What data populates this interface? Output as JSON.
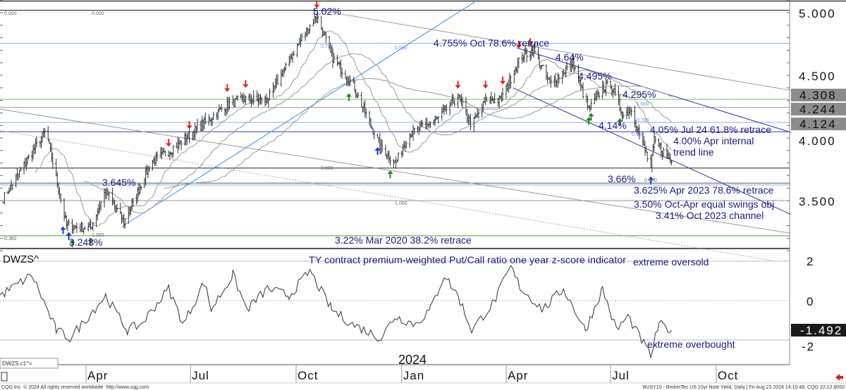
{
  "chart_data": {
    "type": "ohlc-bar",
    "title": "BUSY10 - BrokerTec US 10yr Note Yield, Daily",
    "price_axis": {
      "ticks": [
        "5.000",
        "4.500",
        "4.000",
        "3.500"
      ],
      "range": [
        3.1,
        5.1
      ]
    },
    "price_tags": [
      {
        "label": "4.308",
        "value": 4.308
      },
      {
        "label": "4.244",
        "value": 4.244
      },
      {
        "label": "4.124",
        "value": 4.124
      }
    ],
    "time_axis": {
      "year_label": "2024",
      "months": [
        {
          "label": "Apr",
          "date": "2023-04-01"
        },
        {
          "label": "Jul",
          "date": "2023-07-01"
        },
        {
          "label": "Oct",
          "date": "2023-10-01"
        },
        {
          "label": "Jan",
          "date": "2024-01-01"
        },
        {
          "label": "Apr",
          "date": "2024-04-01"
        },
        {
          "label": "Jul",
          "date": "2024-07-01"
        },
        {
          "label": "Oct",
          "date": "2024-10-01"
        }
      ]
    },
    "price_path": [
      [
        "2023-01-19",
        3.52
      ],
      [
        "2023-02-25",
        4.06
      ],
      [
        "2023-03-15",
        3.3
      ],
      [
        "2023-04-05",
        3.28
      ],
      [
        "2023-04-18",
        3.58
      ],
      [
        "2023-05-04",
        3.33
      ],
      [
        "2023-05-28",
        3.81
      ],
      [
        "2023-06-12",
        3.89
      ],
      [
        "2023-07-01",
        4.03
      ],
      [
        "2023-08-01",
        4.26
      ],
      [
        "2023-08-16",
        4.31
      ],
      [
        "2023-09-06",
        4.3
      ],
      [
        "2023-10-01",
        4.72
      ],
      [
        "2023-10-19",
        4.98
      ],
      [
        "2023-11-01",
        4.65
      ],
      [
        "2023-11-19",
        4.43
      ],
      [
        "2023-12-14",
        3.92
      ],
      [
        "2023-12-27",
        3.8
      ],
      [
        "2024-01-07",
        4.03
      ],
      [
        "2024-02-01",
        4.15
      ],
      [
        "2024-02-19",
        4.33
      ],
      [
        "2024-03-02",
        4.1
      ],
      [
        "2024-03-15",
        4.31
      ],
      [
        "2024-03-27",
        4.3
      ],
      [
        "2024-04-14",
        4.65
      ],
      [
        "2024-04-25",
        4.7
      ],
      [
        "2024-05-09",
        4.43
      ],
      [
        "2024-05-29",
        4.6
      ],
      [
        "2024-06-12",
        4.22
      ],
      [
        "2024-06-24",
        4.4
      ],
      [
        "2024-07-01",
        4.43
      ],
      [
        "2024-07-12",
        4.18
      ],
      [
        "2024-07-19",
        4.23
      ],
      [
        "2024-08-05",
        3.76
      ],
      [
        "2024-08-08",
        3.98
      ],
      [
        "2024-08-23",
        3.81
      ]
    ],
    "levels": [
      {
        "value": 5.02,
        "color": "#222222"
      },
      {
        "value": 4.755,
        "color": "#7fb3f0"
      },
      {
        "value": 4.308,
        "color": "#66cc66"
      },
      {
        "value": 4.244,
        "color": "#999999"
      },
      {
        "value": 4.124,
        "color": "#7fb3f0"
      },
      {
        "value": 4.05,
        "color": "#3333cc"
      },
      {
        "value": 3.76,
        "color": "#222222"
      },
      {
        "value": 3.64,
        "color": "#555555"
      },
      {
        "value": 3.625,
        "color": "#7fb3f0"
      },
      {
        "value": 3.5,
        "color": "#999999"
      },
      {
        "value": 3.22,
        "color": "#33aa33"
      }
    ],
    "trendlines": [
      {
        "from": [
          "2023-05-02",
          3.29
        ],
        "to": [
          "2024-03-07",
          5.1
        ],
        "color": "#3a8ee6"
      },
      {
        "from": [
          "2023-10-20",
          5.02
        ],
        "to": [
          "2024-12-05",
          4.38
        ],
        "color": "#999999"
      },
      {
        "from": [
          "2024-04-10",
          4.72
        ],
        "to": [
          "2024-12-05",
          4.045
        ],
        "color": "#3333aa"
      },
      {
        "from": [
          "2024-04-07",
          4.4
        ],
        "to": [
          "2024-12-05",
          3.39
        ],
        "color": "#3333aa"
      },
      {
        "from": [
          "2023-01-16",
          4.23
        ],
        "to": [
          "2024-12-05",
          3.24
        ],
        "color": "#999999"
      },
      {
        "from": [
          "2023-01-16",
          4.06
        ],
        "to": [
          "2024-11-20",
          3.02
        ],
        "color": "#aaaaaa",
        "dashed": true
      }
    ],
    "annotations": [
      "5.02%",
      "4.755% Oct 78.6% retrace",
      "4.64%",
      "4.495%",
      "4.295%",
      "4.14%",
      "4.05% Jul 24 61.8% retrace",
      "4.00% Apr internal",
      "trend line",
      "3.66%",
      "3.625% Apr 2023 78.6% retrace",
      "3.50% Oct-Apr equal swings obj",
      "3.41% Oct 2023 channel",
      "3.645%",
      "3.248%",
      "3.22% Mar 2020 38.2% retrace"
    ],
    "fib_labels": [
      "0.000",
      "0.000",
      "0.786",
      "0.500",
      "0.000",
      "1.000",
      "1.000",
      "0.382",
      "1.000",
      "0.786",
      "0.618",
      "0.000"
    ],
    "signals": [
      {
        "date": "2023-10-19",
        "type": "down",
        "color": "#e02020"
      },
      {
        "date": "2023-06-12",
        "type": "down",
        "color": "#e02020"
      },
      {
        "date": "2023-06-30",
        "type": "down",
        "color": "#e02020"
      },
      {
        "date": "2023-08-02",
        "type": "down",
        "color": "#e02020"
      },
      {
        "date": "2023-08-18",
        "type": "down",
        "color": "#e02020"
      },
      {
        "date": "2024-02-19",
        "type": "down",
        "color": "#e02020"
      },
      {
        "date": "2024-03-14",
        "type": "down",
        "color": "#e02020"
      },
      {
        "date": "2024-03-29",
        "type": "down",
        "color": "#e02020"
      },
      {
        "date": "2024-04-12",
        "type": "down",
        "color": "#e02020"
      },
      {
        "date": "2024-04-22",
        "type": "down",
        "color": "#e02020"
      },
      {
        "date": "2023-03-12",
        "type": "up",
        "color": "#1a3ad0"
      },
      {
        "date": "2023-03-17",
        "type": "up",
        "color": "#1a3ad0"
      },
      {
        "date": "2023-03-20",
        "type": "up",
        "color": "#1a8a1a"
      },
      {
        "date": "2023-04-05",
        "type": "up",
        "color": "#1a8a1a"
      },
      {
        "date": "2023-11-16",
        "type": "up",
        "color": "#1a8a1a"
      },
      {
        "date": "2023-12-11",
        "type": "up",
        "color": "#1a3ad0"
      },
      {
        "date": "2023-12-22",
        "type": "up",
        "color": "#1a8a1a"
      },
      {
        "date": "2024-06-12",
        "type": "up",
        "color": "#1a8a1a"
      },
      {
        "date": "2024-06-14",
        "type": "up",
        "color": "#1a8a1a"
      },
      {
        "date": "2024-07-09",
        "type": "up",
        "color": "#1a8a1a"
      },
      {
        "date": "2024-08-05",
        "type": "up",
        "color": "#1a3ad0"
      }
    ],
    "indicator": {
      "name": "DWZS^",
      "legend": "DWZS.c1^=",
      "title": "TY contract premium-weighted Put/Call ratio one year z-score indicator",
      "label_top": "extreme oversold",
      "label_bottom": "extreme overbought",
      "ticks": [
        "2",
        "0",
        "-2"
      ],
      "range": [
        -3,
        3
      ],
      "current": "-1.492",
      "path": [
        [
          "2023-01-16",
          0.25
        ],
        [
          "2023-02-13",
          1.3
        ],
        [
          "2023-03-06",
          -1.5
        ],
        [
          "2023-03-18",
          -1.9
        ],
        [
          "2023-04-03",
          -0.8
        ],
        [
          "2023-04-18",
          0.25
        ],
        [
          "2023-05-07",
          -1.5
        ],
        [
          "2023-05-19",
          -1.2
        ],
        [
          "2023-06-12",
          0.6
        ],
        [
          "2023-06-25",
          -1.2
        ],
        [
          "2023-07-13",
          0.95
        ],
        [
          "2023-07-19",
          -0.45
        ],
        [
          "2023-08-07",
          1.3
        ],
        [
          "2023-08-19",
          -0.45
        ],
        [
          "2023-09-06",
          0.6
        ],
        [
          "2023-09-25",
          0.25
        ],
        [
          "2023-10-13",
          1.5
        ],
        [
          "2023-11-01",
          -0.45
        ],
        [
          "2023-11-19",
          -1.2
        ],
        [
          "2023-12-14",
          -1.9
        ],
        [
          "2023-12-26",
          -0.8
        ],
        [
          "2024-01-13",
          -1.2
        ],
        [
          "2024-01-26",
          -0.45
        ],
        [
          "2024-02-07",
          1.3
        ],
        [
          "2024-02-19",
          0.25
        ],
        [
          "2024-03-02",
          -1.5
        ],
        [
          "2024-03-21",
          -0.1
        ],
        [
          "2024-04-05",
          1.7
        ],
        [
          "2024-04-14",
          0.6
        ],
        [
          "2024-05-03",
          -0.45
        ],
        [
          "2024-05-21",
          0.6
        ],
        [
          "2024-06-09",
          -1.5
        ],
        [
          "2024-06-24",
          0.6
        ],
        [
          "2024-07-06",
          -1.5
        ],
        [
          "2024-07-16",
          -0.8
        ],
        [
          "2024-08-05",
          -2.8
        ],
        [
          "2024-08-12",
          -1.2
        ],
        [
          "2024-08-23",
          -1.492
        ]
      ]
    }
  },
  "footer": {
    "left": "CQG Inc. © 2024 All rights reserved worldwide. http://www.cqg.com",
    "right": "BUSY10 - BrokerTec US 10yr Note Yield, Daily | Fri Aug 23 2024 14:10:48, CQG 22.12.8053"
  },
  "colors": {
    "bars": "#333333",
    "annotation": "#1a1a8c",
    "tag_bg": "#8c8c8c",
    "current_bg": "#1a1a1a"
  }
}
